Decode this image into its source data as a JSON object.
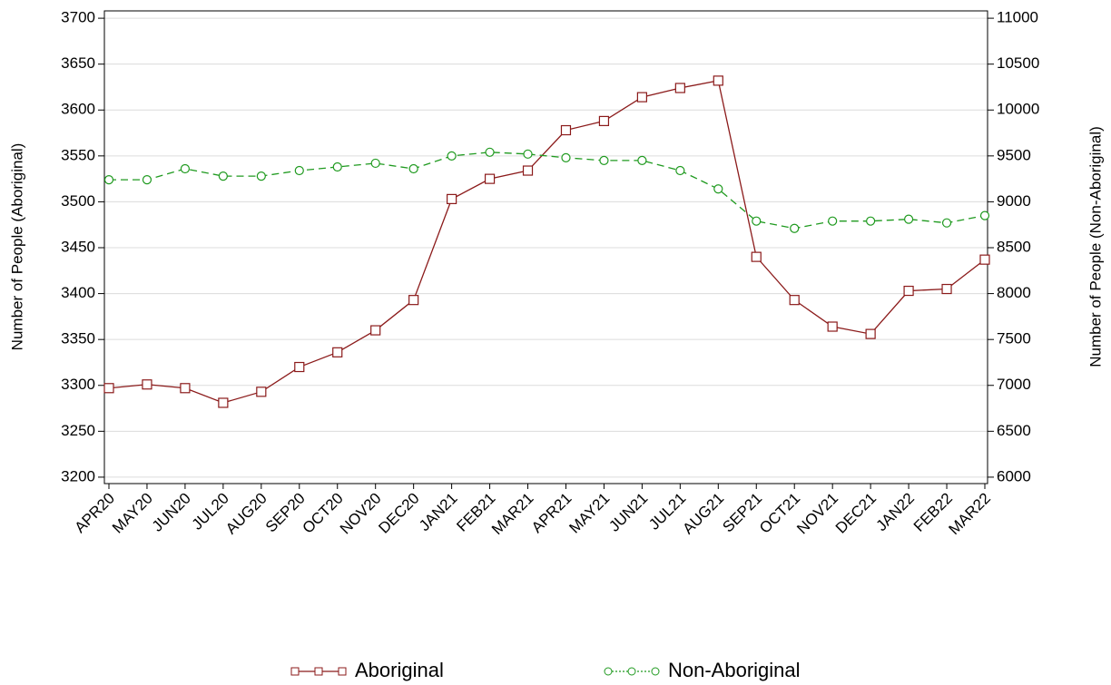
{
  "chart_data": {
    "type": "line",
    "ylabel": "Number of People (Aboriginal)",
    "y2label": "Number of People (Non-Aboriginal)",
    "categories": [
      "APR20",
      "MAY20",
      "JUN20",
      "JUL20",
      "AUG20",
      "SEP20",
      "OCT20",
      "NOV20",
      "DEC20",
      "JAN21",
      "FEB21",
      "MAR21",
      "APR21",
      "MAY21",
      "JUN21",
      "JUL21",
      "AUG21",
      "SEP21",
      "OCT21",
      "NOV21",
      "DEC21",
      "JAN22",
      "FEB22",
      "MAR22"
    ],
    "series": [
      {
        "name": "Aboriginal",
        "color": "#8b1a1a",
        "marker": "square",
        "dash": "solid",
        "values": [
          3297,
          3301,
          3297,
          3281,
          3293,
          3320,
          3336,
          3360,
          3393,
          3503,
          3525,
          3534,
          3578,
          3588,
          3614,
          3624,
          3632,
          3440,
          3393,
          3364,
          3356,
          3403,
          3405,
          3437
        ]
      },
      {
        "name": "Non-Aboriginal",
        "color": "#1f9a1f",
        "marker": "circle",
        "dash": "dashed",
        "axis": "y2",
        "values": [
          9240,
          9240,
          9360,
          9280,
          9280,
          9340,
          9380,
          9420,
          9360,
          9500,
          9540,
          9520,
          9480,
          9450,
          9450,
          9340,
          9140,
          8790,
          8710,
          8790,
          8790,
          8810,
          8770,
          8850
        ]
      }
    ],
    "ylim": [
      3193,
      3708
    ],
    "yticks": [
      3200,
      3250,
      3300,
      3350,
      3400,
      3450,
      3500,
      3550,
      3600,
      3650,
      3700
    ],
    "y2lim": [
      5930,
      11080
    ],
    "y2ticks": [
      6000,
      6500,
      7000,
      7500,
      8000,
      8500,
      9000,
      9500,
      10000,
      10500,
      11000
    ],
    "grid": true,
    "legend": "bottom"
  }
}
